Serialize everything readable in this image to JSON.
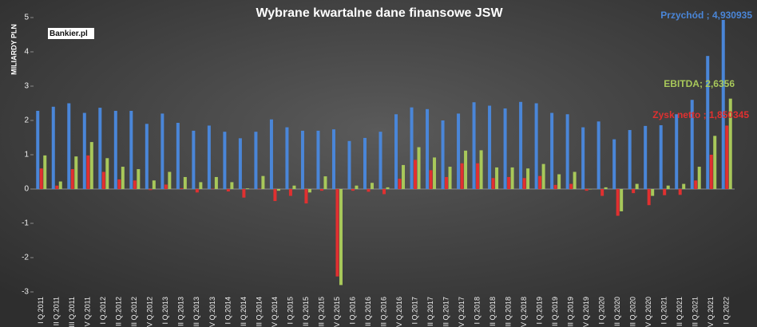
{
  "chart_data": {
    "type": "bar",
    "title": "Wybrane kwartalne dane finansowe JSW",
    "y_label": "MILIARDY PLN",
    "logo": "Bankier.pl",
    "annotations": [
      "Przychód ; 4,930935",
      "EBITDA; 2,6356",
      "Zysk netto ; 1,850345"
    ],
    "categories": [
      "I Q.2011",
      "II Q.2011",
      "III Q.2011",
      "IV Q.2011",
      "I Q.2012",
      "II Q.2012",
      "III Q.2012",
      "IV Q.2012",
      "I Q.2013",
      "II Q.2013",
      "III Q.2013",
      "IV Q.2013",
      "I Q.2014",
      "II Q.2014",
      "III Q.2014",
      "IV Q.2014",
      "I Q.2015",
      "II Q.2015",
      "III Q.2015",
      "IV Q.2015",
      "I Q.2016",
      "II Q.2016",
      "III Q.2016",
      "IV Q.2016",
      "I Q.2017",
      "II Q.2017",
      "III Q.2017",
      "IV Q.2017",
      "I Q.2018",
      "II Q.2018",
      "III Q.2018",
      "IV Q.2018",
      "I Q.2019",
      "II Q.2019",
      "III Q.2019",
      "IV Q.2019",
      "I Q.2020",
      "II Q.2020",
      "III Q.2020",
      "IV Q.2020",
      "I Q.2021",
      "II Q.2021",
      "III Q.2021",
      "IV Q.2021",
      "I Q.2022"
    ],
    "series": [
      {
        "name": "Przychód",
        "color": "#4a86d8",
        "values": [
          2.28,
          2.4,
          2.5,
          2.22,
          2.37,
          2.28,
          2.28,
          1.9,
          2.2,
          1.93,
          1.7,
          1.85,
          1.67,
          1.48,
          1.67,
          2.03,
          1.8,
          1.7,
          1.7,
          1.74,
          1.4,
          1.49,
          1.67,
          2.18,
          2.38,
          2.33,
          2.0,
          2.2,
          2.53,
          2.43,
          2.35,
          2.54,
          2.5,
          2.22,
          2.18,
          1.8,
          1.97,
          1.45,
          1.72,
          1.84,
          1.86,
          2.18,
          2.6,
          3.88,
          4.930935
        ]
      },
      {
        "name": "Zysk netto",
        "color": "#e03030",
        "values": [
          0.6,
          0.1,
          0.58,
          0.98,
          0.5,
          0.28,
          0.25,
          -0.03,
          0.13,
          0.02,
          -0.1,
          0.01,
          -0.07,
          -0.25,
          0.01,
          -0.35,
          -0.2,
          -0.42,
          -0.05,
          -2.55,
          -0.05,
          -0.08,
          -0.15,
          0.3,
          0.85,
          0.55,
          0.35,
          0.75,
          0.75,
          0.32,
          0.35,
          0.32,
          0.38,
          0.12,
          0.15,
          -0.05,
          -0.2,
          -0.78,
          -0.12,
          -0.47,
          -0.18,
          -0.17,
          0.25,
          1.0,
          1.850345
        ]
      },
      {
        "name": "EBITDA",
        "color": "#a8c85a",
        "values": [
          0.98,
          0.22,
          0.95,
          1.37,
          0.9,
          0.65,
          0.58,
          0.25,
          0.5,
          0.35,
          0.2,
          0.35,
          0.2,
          0.02,
          0.38,
          -0.05,
          0.1,
          -0.1,
          0.37,
          -2.8,
          0.1,
          0.18,
          0.05,
          0.7,
          1.22,
          0.92,
          0.65,
          1.12,
          1.13,
          0.63,
          0.63,
          0.6,
          0.73,
          0.43,
          0.5,
          0.0,
          0.05,
          -0.65,
          0.15,
          -0.2,
          0.1,
          0.15,
          0.65,
          1.55,
          2.6356
        ]
      }
    ],
    "ylim": [
      -3,
      5
    ],
    "yticks": [
      -3,
      -2,
      -1,
      0,
      1,
      2,
      3,
      4,
      5
    ],
    "grid": false
  }
}
